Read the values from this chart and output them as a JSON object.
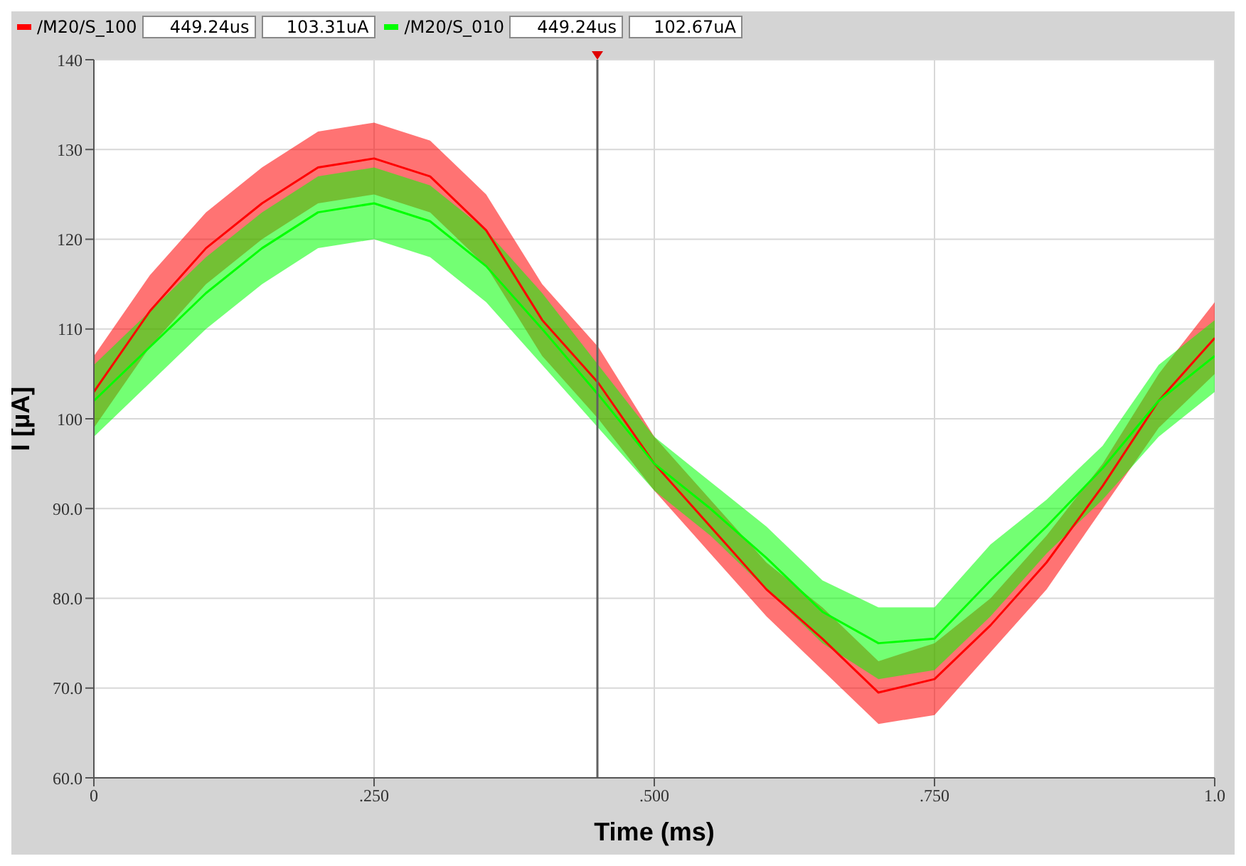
{
  "chart_data": {
    "type": "line",
    "xlabel": "Time (ms)",
    "ylabel": "I [µA]",
    "legend": "top left",
    "grid": true,
    "marker": "none",
    "line_style": "solid",
    "x": [
      0,
      0.05,
      0.1,
      0.15,
      0.2,
      0.25,
      0.3,
      0.35,
      0.4,
      0.45,
      0.5,
      0.55,
      0.6,
      0.65,
      0.7,
      0.75,
      0.8,
      0.85,
      0.9,
      0.95,
      1.0
    ],
    "series": [
      {
        "name": "/M20/S_100",
        "color": "#ff0000",
        "values": [
          103,
          112,
          119,
          124,
          128,
          129,
          127,
          121,
          111,
          104,
          95,
          88,
          81,
          75.5,
          69.5,
          71,
          77,
          84,
          92.5,
          102,
          109
        ],
        "lower": [
          99,
          108,
          115,
          120,
          124,
          125,
          123,
          117,
          107,
          100,
          92,
          85,
          78,
          72,
          66,
          67,
          74,
          81,
          90,
          99,
          105
        ],
        "upper": [
          107,
          116,
          123,
          128,
          132,
          133,
          131,
          125,
          115,
          108,
          98,
          91,
          84,
          79,
          73,
          75,
          80,
          87,
          95,
          105,
          113
        ]
      },
      {
        "name": "/M20/S_010",
        "color": "#00ff00",
        "values": [
          102,
          108,
          114,
          119,
          123,
          124,
          122,
          117,
          110,
          102.7,
          95,
          90,
          84.5,
          78.5,
          75,
          75.5,
          82,
          88,
          94.5,
          102,
          107
        ],
        "lower": [
          98,
          104,
          110,
          115,
          119,
          120,
          118,
          113,
          106,
          99,
          92,
          87,
          81,
          75,
          71,
          72,
          78,
          85,
          91,
          98,
          103
        ],
        "upper": [
          106,
          112,
          118,
          123,
          127,
          128,
          126,
          121,
          114,
          106,
          98,
          93,
          88,
          82,
          79,
          79,
          86,
          91,
          97,
          106,
          111
        ]
      }
    ],
    "annotations": [
      "449.24us",
      "103.31uA",
      "449.24us",
      "102.67uA"
    ],
    "ref_lines": [
      {
        "axis": "x",
        "value": 0.44924,
        "color": "#606060"
      }
    ],
    "xlim": [
      0,
      1.0
    ],
    "xticks": [
      0,
      {
        "value": 0.25,
        "label": ".250"
      },
      {
        "value": 0.5,
        "label": ".500"
      },
      {
        "value": 0.75,
        "label": ".750"
      },
      {
        "value": 1.0,
        "label": "1.0"
      }
    ],
    "ylim": [
      60,
      140
    ],
    "yticks": [
      {
        "value": 60,
        "label": "60.0"
      },
      {
        "value": 70,
        "label": "70.0"
      },
      {
        "value": 80,
        "label": "80.0"
      },
      {
        "value": 90,
        "label": "90.0"
      },
      100,
      110,
      120,
      130,
      140
    ]
  }
}
